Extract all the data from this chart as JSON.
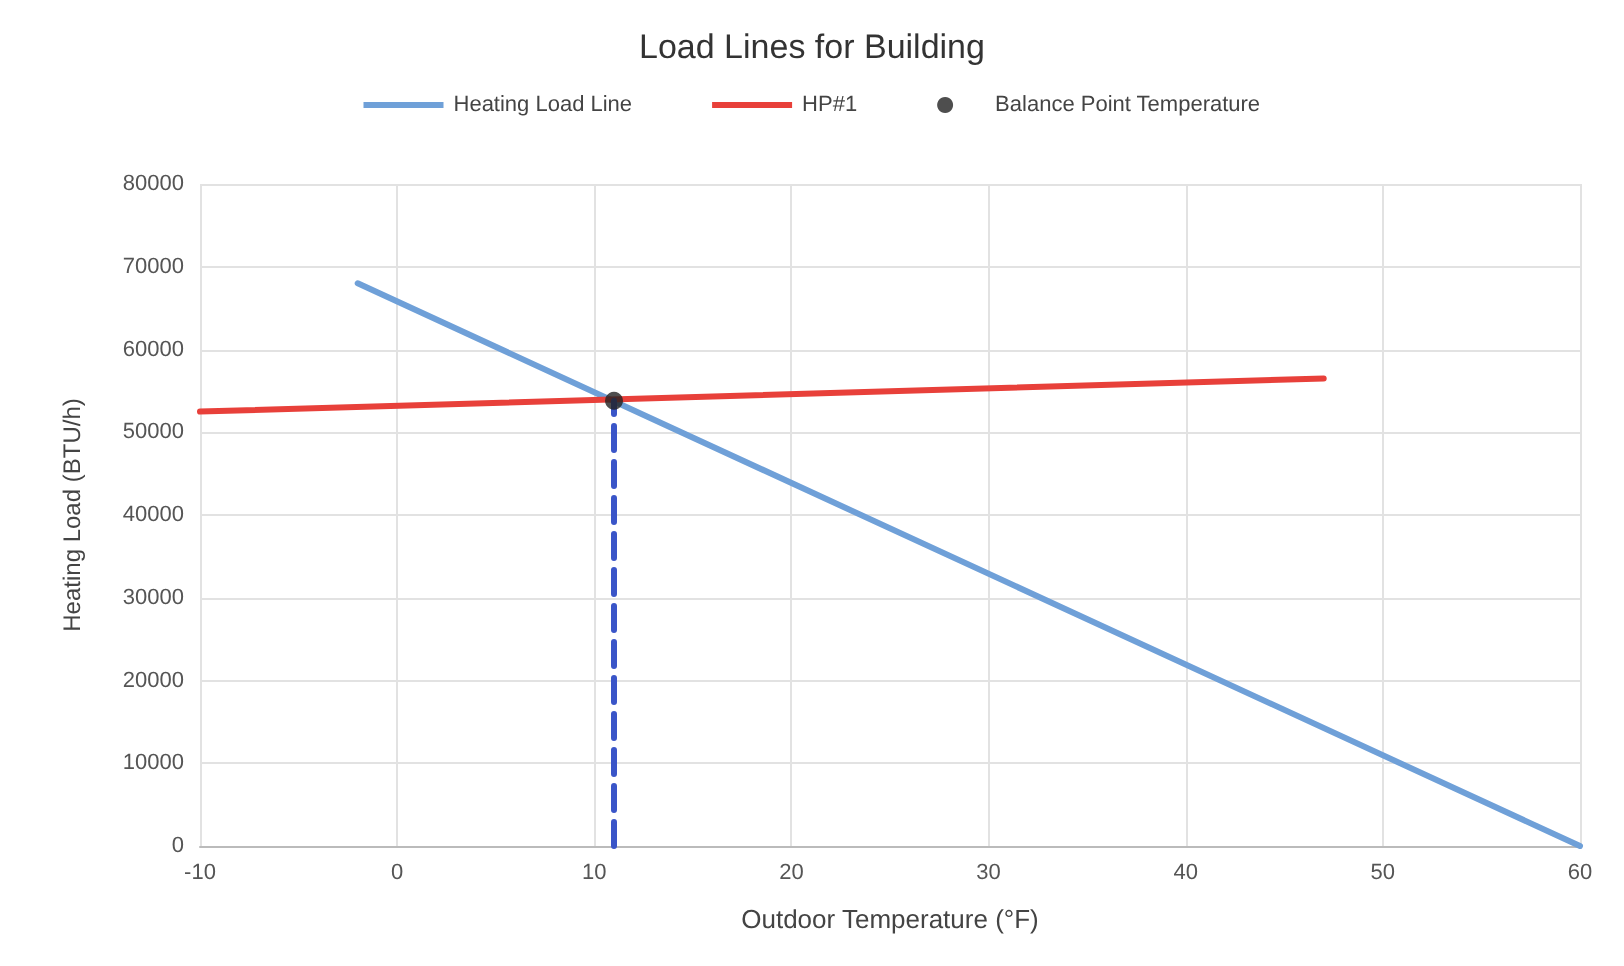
{
  "chart_data": {
    "type": "line",
    "title": "Load Lines for Building",
    "xlabel": "Outdoor Temperature (°F)",
    "ylabel": "Heating Load (BTU/h)",
    "series": [
      {
        "name": "Heating Load Line",
        "color": "#6fa0d8",
        "x": [
          -2,
          60
        ],
        "values": [
          68000,
          0
        ],
        "marker": "none"
      },
      {
        "name": "HP#1",
        "color": "#e8403a",
        "x": [
          -10,
          47
        ],
        "values": [
          52500,
          56500
        ],
        "marker": "none"
      },
      {
        "name": "Balance Point Temperature",
        "type": "scatter",
        "color": "#222222",
        "x": [
          11
        ],
        "values": [
          53800
        ],
        "marker": "circle"
      },
      {
        "type": "line",
        "color": "#3a55c8",
        "line_style": "dashed",
        "x": [
          11,
          11
        ],
        "values": [
          0,
          53800
        ],
        "marker": "none"
      }
    ],
    "xlim": [
      -10,
      60
    ],
    "xticks": [
      -10,
      0,
      10,
      20,
      30,
      40,
      50,
      60
    ],
    "ylim": [
      0,
      80000
    ],
    "yticks": [
      0,
      10000,
      20000,
      30000,
      40000,
      50000,
      60000,
      70000,
      80000
    ],
    "grid": true,
    "legend": "top"
  }
}
